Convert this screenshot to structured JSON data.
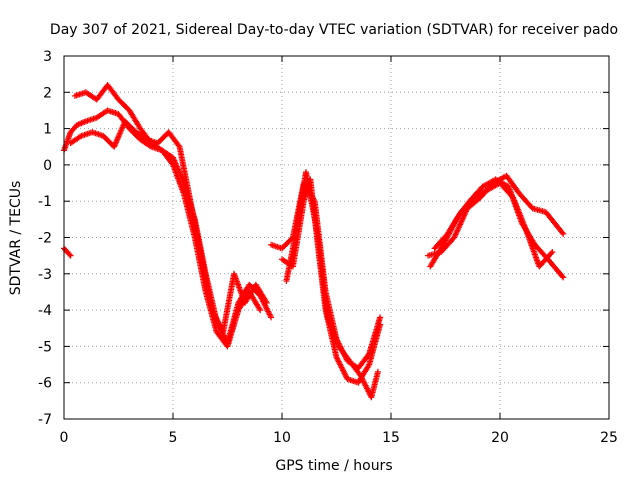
{
  "chart_data": {
    "type": "scatter",
    "title": "Day 307 of 2021, Sidereal Day-to-day VTEC variation (SDTVAR) for receiver pado",
    "xlabel": "GPS time / hours",
    "ylabel": "SDTVAR / TECUs",
    "xlim": [
      0,
      25
    ],
    "ylim": [
      -7,
      3
    ],
    "xticks": [
      0,
      5,
      10,
      15,
      20,
      25
    ],
    "yticks": [
      -7,
      -6,
      -5,
      -4,
      -3,
      -2,
      -1,
      0,
      1,
      2,
      3
    ],
    "grid": true,
    "marker": "+",
    "color": "#ff0000",
    "series": [
      {
        "name": "track-a",
        "x": [
          0.0,
          0.3,
          0.6,
          1.0,
          1.5,
          2.0,
          2.5,
          3.0,
          3.5,
          4.0,
          4.5,
          5.0,
          5.5,
          6.0,
          6.5,
          7.0,
          7.5,
          8.0,
          8.5,
          9.0,
          9.5
        ],
        "y": [
          0.4,
          0.9,
          1.1,
          1.2,
          1.3,
          1.5,
          1.4,
          1.0,
          0.7,
          0.5,
          0.4,
          0.2,
          -0.5,
          -1.5,
          -3.0,
          -4.3,
          -4.9,
          -3.8,
          -3.3,
          -3.6,
          -4.2
        ]
      },
      {
        "name": "track-b",
        "x": [
          0.5,
          1.0,
          1.5,
          2.0,
          2.5,
          3.0,
          3.5,
          4.0,
          4.5,
          5.0,
          5.5,
          6.0,
          6.5,
          7.0,
          7.5,
          8.0,
          8.5,
          9.0
        ],
        "y": [
          1.9,
          2.0,
          1.8,
          2.2,
          1.8,
          1.5,
          1.0,
          0.6,
          0.4,
          0.0,
          -0.8,
          -2.0,
          -3.5,
          -4.6,
          -5.0,
          -4.0,
          -3.5,
          -4.0
        ]
      },
      {
        "name": "track-c",
        "x": [
          0.3,
          0.8,
          1.3,
          1.8,
          2.3,
          2.8,
          3.3,
          3.8,
          4.3,
          4.8,
          5.3,
          5.8,
          6.3,
          6.8,
          7.3,
          7.8,
          8.3,
          8.8,
          9.3
        ],
        "y": [
          0.6,
          0.8,
          0.9,
          0.8,
          0.5,
          1.2,
          0.9,
          0.7,
          0.6,
          0.9,
          0.5,
          -1.0,
          -2.5,
          -4.0,
          -4.6,
          -3.0,
          -3.8,
          -3.3,
          -3.8
        ]
      },
      {
        "name": "track-d",
        "x": [
          9.5,
          10.0,
          10.5,
          11.0,
          11.5,
          12.0,
          12.5,
          13.0,
          13.5,
          14.0,
          14.5
        ],
        "y": [
          -2.2,
          -2.3,
          -2.0,
          -0.5,
          -1.0,
          -3.5,
          -4.8,
          -5.4,
          -5.6,
          -5.2,
          -4.2
        ]
      },
      {
        "name": "track-e",
        "x": [
          10.0,
          10.5,
          11.0,
          11.3,
          11.7,
          12.0,
          12.5,
          13.0,
          13.5,
          14.0,
          14.5
        ],
        "y": [
          -2.6,
          -2.8,
          -1.0,
          -0.4,
          -2.5,
          -4.0,
          -5.3,
          -5.9,
          -6.0,
          -5.5,
          -4.4
        ]
      },
      {
        "name": "track-f",
        "x": [
          10.2,
          10.6,
          11.1,
          11.6,
          12.1,
          12.6,
          13.1,
          13.6,
          14.1,
          14.4
        ],
        "y": [
          -3.2,
          -2.0,
          -0.2,
          -1.8,
          -4.2,
          -5.0,
          -5.4,
          -5.8,
          -6.4,
          -5.7
        ]
      },
      {
        "name": "track-g",
        "x": [
          16.7,
          17.3,
          17.9,
          18.5,
          19.1,
          19.7,
          20.3,
          20.9,
          21.5,
          22.1,
          22.9
        ],
        "y": [
          -2.5,
          -2.4,
          -2.0,
          -1.2,
          -0.9,
          -0.5,
          -0.3,
          -0.8,
          -1.2,
          -1.3,
          -1.9
        ]
      },
      {
        "name": "track-h",
        "x": [
          16.8,
          17.4,
          18.0,
          18.6,
          19.2,
          19.8,
          20.4,
          21.0,
          21.6,
          22.2,
          22.9
        ],
        "y": [
          -2.8,
          -2.2,
          -1.5,
          -1.0,
          -0.6,
          -0.4,
          -0.6,
          -1.6,
          -2.2,
          -2.6,
          -3.1
        ]
      },
      {
        "name": "track-i",
        "x": [
          17.0,
          17.6,
          18.2,
          18.8,
          19.4,
          20.0,
          20.6,
          21.2,
          21.8,
          22.4
        ],
        "y": [
          -2.3,
          -1.9,
          -1.3,
          -0.9,
          -0.7,
          -0.5,
          -0.9,
          -1.8,
          -2.8,
          -2.4
        ]
      },
      {
        "name": "track-j",
        "x": [
          0.0,
          0.15,
          0.3
        ],
        "y": [
          -2.3,
          -2.4,
          -2.5
        ]
      }
    ]
  }
}
